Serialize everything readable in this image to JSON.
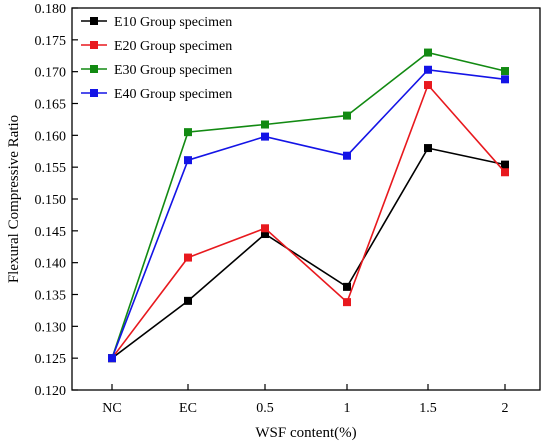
{
  "chart_data": {
    "type": "line",
    "categories": [
      "NC",
      "EC",
      "0.5",
      "1",
      "1.5",
      "2"
    ],
    "xlabel": "WSF content(%)",
    "ylabel": "Flexural Compressive Ratio",
    "ylim": [
      0.12,
      0.18
    ],
    "yticks": [
      "0.120",
      "0.125",
      "0.130",
      "0.135",
      "0.140",
      "0.145",
      "0.150",
      "0.155",
      "0.160",
      "0.165",
      "0.170",
      "0.175",
      "0.180"
    ],
    "grid": false,
    "legend_position": "top-left",
    "series": [
      {
        "name": "E10 Group specimen",
        "color": "#000000",
        "values": [
          0.125,
          0.134,
          0.1445,
          0.1362,
          0.158,
          0.1554
        ]
      },
      {
        "name": "E20 Group specimen",
        "color": "#e8191e",
        "values": [
          0.125,
          0.1408,
          0.1454,
          0.1338,
          0.1679,
          0.1542
        ]
      },
      {
        "name": "E30 Group specimen",
        "color": "#128a12",
        "values": [
          0.125,
          0.1605,
          0.1617,
          0.1631,
          0.173,
          0.1701
        ]
      },
      {
        "name": "E40 Group specimen",
        "color": "#1414e6",
        "values": [
          0.125,
          0.1561,
          0.1598,
          0.1568,
          0.1703,
          0.1688
        ]
      }
    ]
  }
}
